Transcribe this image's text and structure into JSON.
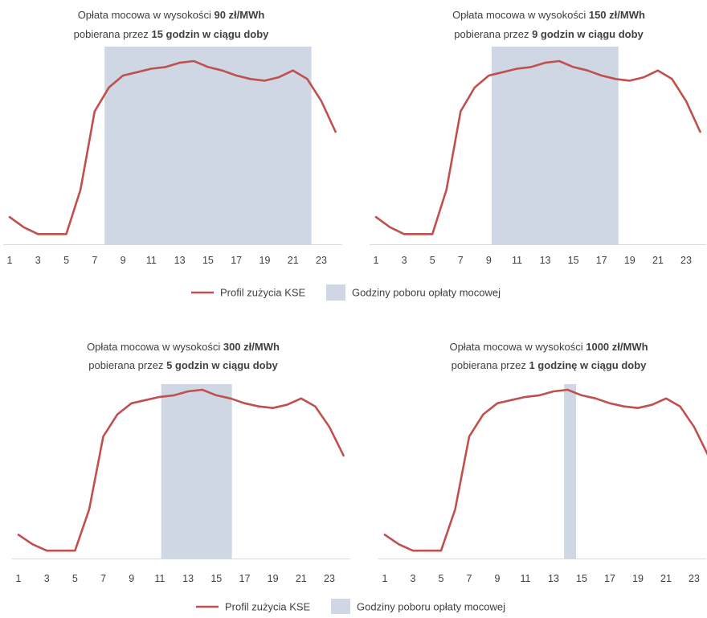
{
  "legend": {
    "line_label": "Profil zużycia KSE",
    "band_label": "Godziny poboru opłaty mocowej"
  },
  "colors": {
    "line": "#c0504d",
    "band": "#ced7e3",
    "axis": "#d9d9d9",
    "text": "#404040"
  },
  "chart_data": [
    {
      "type": "line",
      "title_line1": [
        "Opłata mocowa w wysokości ",
        "90 zł/MWh"
      ],
      "title_line2": [
        "pobierana przez ",
        "15 godzin w ciągu doby"
      ],
      "x": [
        1,
        2,
        3,
        4,
        5,
        6,
        7,
        8,
        9,
        10,
        11,
        12,
        13,
        14,
        15,
        16,
        17,
        18,
        19,
        20,
        21,
        22,
        23,
        24
      ],
      "series": [
        {
          "values": [
            0.16,
            0.1,
            0.06,
            0.06,
            0.06,
            0.32,
            0.78,
            0.92,
            0.99,
            1.01,
            1.03,
            1.04,
            1.065,
            1.075,
            1.04,
            1.02,
            0.99,
            0.97,
            0.96,
            0.98,
            1.02,
            0.97,
            0.84,
            0.66
          ]
        }
      ],
      "band_hours": [
        7.7,
        22.3
      ],
      "x_ticks": [
        "1",
        "3",
        "5",
        "7",
        "9",
        "11",
        "13",
        "15",
        "17",
        "19",
        "21",
        "23"
      ],
      "ylim": [
        0,
        1.2
      ]
    },
    {
      "type": "line",
      "title_line1": [
        "Opłata mocowa w wysokości ",
        "150 zł/MWh"
      ],
      "title_line2": [
        "pobierana przez ",
        "9 godzin w ciągu doby"
      ],
      "x": [
        1,
        2,
        3,
        4,
        5,
        6,
        7,
        8,
        9,
        10,
        11,
        12,
        13,
        14,
        15,
        16,
        17,
        18,
        19,
        20,
        21,
        22,
        23,
        24
      ],
      "series": [
        {
          "values": [
            0.16,
            0.1,
            0.06,
            0.06,
            0.06,
            0.32,
            0.78,
            0.92,
            0.99,
            1.01,
            1.03,
            1.04,
            1.065,
            1.075,
            1.04,
            1.02,
            0.99,
            0.97,
            0.96,
            0.98,
            1.02,
            0.97,
            0.84,
            0.66
          ]
        }
      ],
      "band_hours": [
        9.2,
        18.2
      ],
      "x_ticks": [
        "1",
        "3",
        "5",
        "7",
        "9",
        "11",
        "13",
        "15",
        "17",
        "19",
        "21",
        "23"
      ],
      "ylim": [
        0,
        1.2
      ]
    },
    {
      "type": "line",
      "title_line1": [
        "Opłata mocowa w wysokości ",
        "300 zł/MWh"
      ],
      "title_line2": [
        "pobierana przez ",
        "5 godzin w ciągu doby"
      ],
      "x": [
        1,
        2,
        3,
        4,
        5,
        6,
        7,
        8,
        9,
        10,
        11,
        12,
        13,
        14,
        15,
        16,
        17,
        18,
        19,
        20,
        21,
        22,
        23,
        24
      ],
      "series": [
        {
          "values": [
            0.16,
            0.1,
            0.06,
            0.06,
            0.06,
            0.32,
            0.78,
            0.92,
            0.99,
            1.01,
            1.03,
            1.04,
            1.065,
            1.075,
            1.04,
            1.02,
            0.99,
            0.97,
            0.96,
            0.98,
            1.02,
            0.97,
            0.84,
            0.66
          ]
        }
      ],
      "band_hours": [
        11.1,
        16.1
      ],
      "x_ticks": [
        "1",
        "3",
        "5",
        "7",
        "9",
        "11",
        "13",
        "15",
        "17",
        "19",
        "21",
        "23"
      ],
      "ylim": [
        0,
        1.2
      ]
    },
    {
      "type": "line",
      "title_line1": [
        "Opłata mocowa w wysokości ",
        "1000 zł/MWh"
      ],
      "title_line2": [
        "pobierana przez ",
        "1 godzinę w ciągu doby"
      ],
      "x": [
        1,
        2,
        3,
        4,
        5,
        6,
        7,
        8,
        9,
        10,
        11,
        12,
        13,
        14,
        15,
        16,
        17,
        18,
        19,
        20,
        21,
        22,
        23,
        24
      ],
      "series": [
        {
          "values": [
            0.16,
            0.1,
            0.06,
            0.06,
            0.06,
            0.32,
            0.78,
            0.92,
            0.99,
            1.01,
            1.03,
            1.04,
            1.065,
            1.075,
            1.04,
            1.02,
            0.99,
            0.97,
            0.96,
            0.98,
            1.02,
            0.97,
            0.84,
            0.66
          ]
        }
      ],
      "band_hours": [
        13.75,
        14.6
      ],
      "x_ticks": [
        "1",
        "3",
        "5",
        "7",
        "9",
        "11",
        "13",
        "15",
        "17",
        "19",
        "21",
        "23"
      ],
      "ylim": [
        0,
        1.2
      ]
    }
  ]
}
